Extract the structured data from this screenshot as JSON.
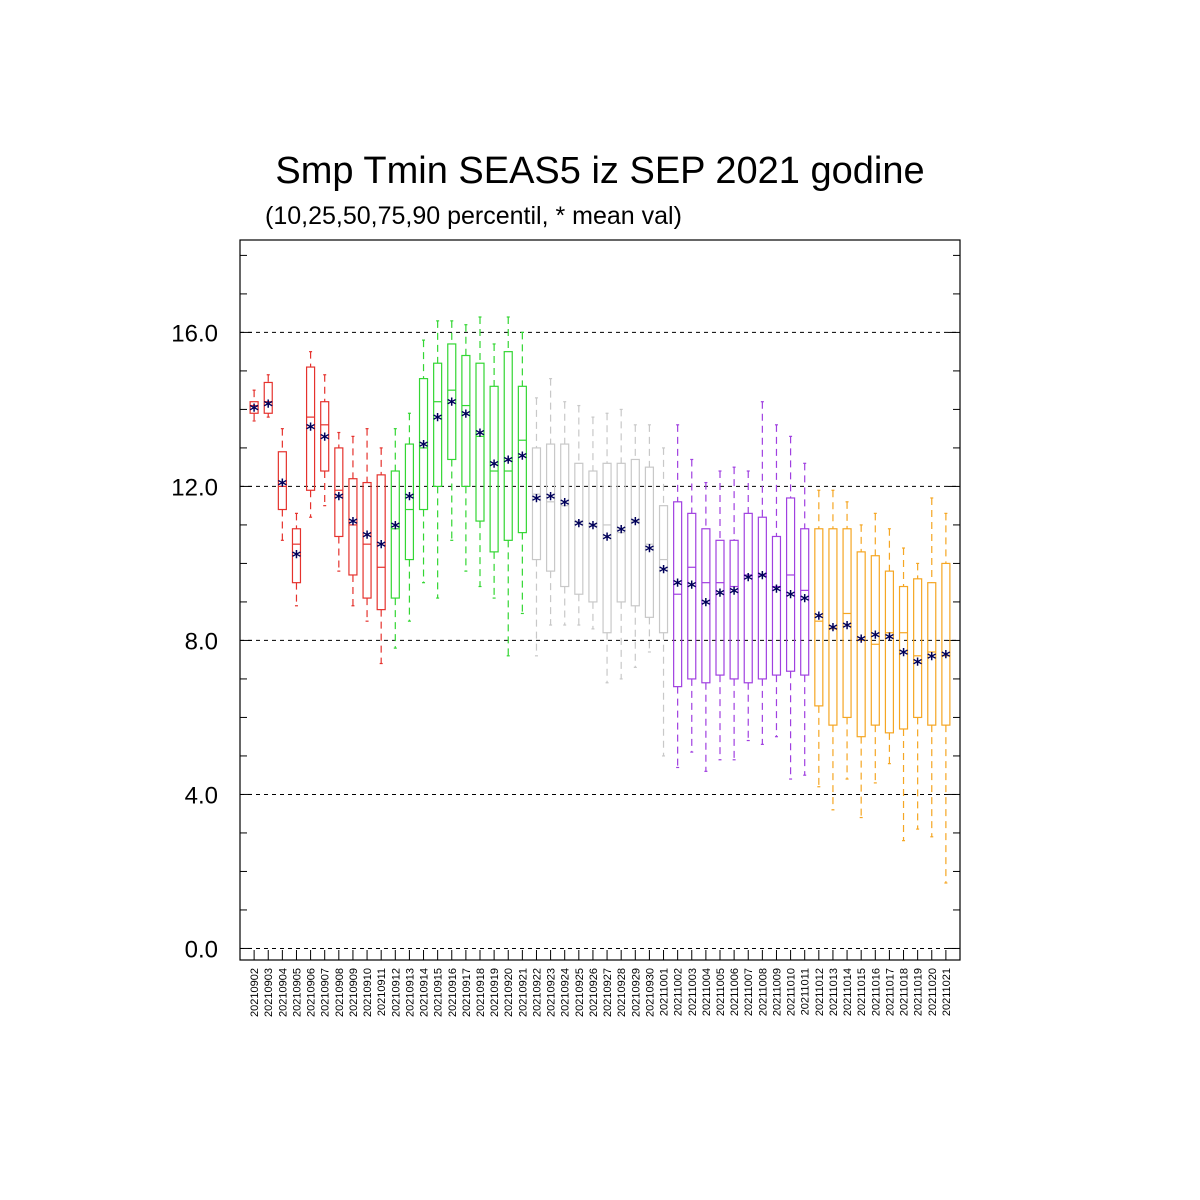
{
  "chart_data": {
    "type": "box",
    "title": "Smp Tmin SEAS5 iz SEP 2021 godine",
    "subtitle": "(10,25,50,75,90 percentil, * mean val)",
    "xlabel": "",
    "ylabel": "",
    "ylim": [
      -0.3,
      18.4
    ],
    "yticks": [
      "0.0",
      "4.0",
      "8.0",
      "12.0",
      "16.0"
    ],
    "ytick_values": [
      0,
      4,
      8,
      12,
      16
    ],
    "grid": "dashed horizontal at major ticks",
    "categories": [
      "20210902",
      "20210903",
      "20210904",
      "20210905",
      "20210906",
      "20210907",
      "20210908",
      "20210909",
      "20210910",
      "20210911",
      "20210912",
      "20210913",
      "20210914",
      "20210915",
      "20210916",
      "20210917",
      "20210918",
      "20210919",
      "20210920",
      "20210921",
      "20210922",
      "20210923",
      "20210924",
      "20210925",
      "20210926",
      "20210927",
      "20210928",
      "20210929",
      "20210930",
      "20211001",
      "20211002",
      "20211003",
      "20211004",
      "20211005",
      "20211006",
      "20211007",
      "20211008",
      "20211009",
      "20211010",
      "20211011",
      "20211012",
      "20211013",
      "20211014",
      "20211015",
      "20211016",
      "20211017",
      "20211018",
      "20211019",
      "20211020",
      "20211021"
    ],
    "colors": [
      "#e5322d",
      "#e5322d",
      "#e5322d",
      "#e5322d",
      "#e5322d",
      "#e5322d",
      "#e5322d",
      "#e5322d",
      "#e5322d",
      "#e5322d",
      "#33d633",
      "#33d633",
      "#33d633",
      "#33d633",
      "#33d633",
      "#33d633",
      "#33d633",
      "#33d633",
      "#33d633",
      "#33d633",
      "#c8c8c8",
      "#c8c8c8",
      "#c8c8c8",
      "#c8c8c8",
      "#c8c8c8",
      "#c8c8c8",
      "#c8c8c8",
      "#c8c8c8",
      "#c8c8c8",
      "#c8c8c8",
      "#a040e0",
      "#a040e0",
      "#a040e0",
      "#a040e0",
      "#a040e0",
      "#a040e0",
      "#a040e0",
      "#a040e0",
      "#a040e0",
      "#a040e0",
      "#f5a623",
      "#f5a623",
      "#f5a623",
      "#f5a623",
      "#f5a623",
      "#f5a623",
      "#f5a623",
      "#f5a623",
      "#f5a623",
      "#f5a623"
    ],
    "mean_color": "#00005a",
    "boxes": [
      {
        "p10": 13.7,
        "p25": 13.9,
        "p50": 14.1,
        "p75": 14.2,
        "p90": 14.5,
        "mean": 14.05
      },
      {
        "p10": 13.8,
        "p25": 13.9,
        "p50": 14.2,
        "p75": 14.7,
        "p90": 14.9,
        "mean": 14.15
      },
      {
        "p10": 10.6,
        "p25": 11.4,
        "p50": 12.0,
        "p75": 12.9,
        "p90": 13.5,
        "mean": 12.1
      },
      {
        "p10": 8.9,
        "p25": 9.5,
        "p50": 10.5,
        "p75": 10.9,
        "p90": 11.3,
        "mean": 10.25
      },
      {
        "p10": 11.2,
        "p25": 11.9,
        "p50": 13.8,
        "p75": 15.1,
        "p90": 15.5,
        "mean": 13.55
      },
      {
        "p10": 11.5,
        "p25": 12.4,
        "p50": 13.6,
        "p75": 14.2,
        "p90": 14.9,
        "mean": 13.3
      },
      {
        "p10": 9.8,
        "p25": 10.7,
        "p50": 11.9,
        "p75": 13.0,
        "p90": 13.4,
        "mean": 11.75
      },
      {
        "p10": 8.9,
        "p25": 9.7,
        "p50": 11.0,
        "p75": 12.2,
        "p90": 13.3,
        "mean": 11.1
      },
      {
        "p10": 8.5,
        "p25": 9.1,
        "p50": 10.5,
        "p75": 12.1,
        "p90": 13.5,
        "mean": 10.75
      },
      {
        "p10": 7.4,
        "p25": 8.8,
        "p50": 9.9,
        "p75": 12.3,
        "p90": 13.0,
        "mean": 10.5
      },
      {
        "p10": 7.8,
        "p25": 9.1,
        "p50": 10.9,
        "p75": 12.4,
        "p90": 13.5,
        "mean": 11.0
      },
      {
        "p10": 8.5,
        "p25": 10.1,
        "p50": 11.4,
        "p75": 13.1,
        "p90": 13.9,
        "mean": 11.75
      },
      {
        "p10": 9.5,
        "p25": 11.4,
        "p50": 13.0,
        "p75": 14.8,
        "p90": 15.8,
        "mean": 13.1
      },
      {
        "p10": 9.1,
        "p25": 12.0,
        "p50": 14.2,
        "p75": 15.2,
        "p90": 16.3,
        "mean": 13.8
      },
      {
        "p10": 10.6,
        "p25": 12.7,
        "p50": 14.5,
        "p75": 15.7,
        "p90": 16.3,
        "mean": 14.2
      },
      {
        "p10": 9.8,
        "p25": 12.0,
        "p50": 14.1,
        "p75": 15.4,
        "p90": 16.2,
        "mean": 13.9
      },
      {
        "p10": 9.4,
        "p25": 11.1,
        "p50": 13.3,
        "p75": 15.2,
        "p90": 16.4,
        "mean": 13.4
      },
      {
        "p10": 9.1,
        "p25": 10.3,
        "p50": 12.4,
        "p75": 14.6,
        "p90": 15.7,
        "mean": 12.6
      },
      {
        "p10": 7.6,
        "p25": 10.6,
        "p50": 12.4,
        "p75": 15.5,
        "p90": 16.4,
        "mean": 12.7
      },
      {
        "p10": 8.7,
        "p25": 10.8,
        "p50": 13.2,
        "p75": 14.6,
        "p90": 16.0,
        "mean": 12.8
      },
      {
        "p10": 7.6,
        "p25": 10.1,
        "p50": 11.8,
        "p75": 13.0,
        "p90": 14.3,
        "mean": 11.7
      },
      {
        "p10": 8.4,
        "p25": 9.8,
        "p50": 11.6,
        "p75": 13.1,
        "p90": 14.8,
        "mean": 11.75
      },
      {
        "p10": 8.4,
        "p25": 9.4,
        "p50": 11.5,
        "p75": 13.1,
        "p90": 14.2,
        "mean": 11.6
      },
      {
        "p10": 8.4,
        "p25": 9.2,
        "p50": 11.1,
        "p75": 12.6,
        "p90": 14.1,
        "mean": 11.05
      },
      {
        "p10": 8.3,
        "p25": 9.0,
        "p50": 11.0,
        "p75": 12.4,
        "p90": 13.8,
        "mean": 11.0
      },
      {
        "p10": 6.9,
        "p25": 8.2,
        "p50": 11.0,
        "p75": 12.6,
        "p90": 13.9,
        "mean": 10.7
      },
      {
        "p10": 7.0,
        "p25": 9.0,
        "p50": 10.8,
        "p75": 12.6,
        "p90": 14.0,
        "mean": 10.9
      },
      {
        "p10": 7.3,
        "p25": 8.9,
        "p50": 11.1,
        "p75": 12.7,
        "p90": 13.6,
        "mean": 11.1
      },
      {
        "p10": 7.7,
        "p25": 8.6,
        "p50": 10.5,
        "p75": 12.5,
        "p90": 13.6,
        "mean": 10.4
      },
      {
        "p10": 5.0,
        "p25": 8.2,
        "p50": 10.1,
        "p75": 11.5,
        "p90": 13.0,
        "mean": 9.85
      },
      {
        "p10": 4.7,
        "p25": 6.8,
        "p50": 9.2,
        "p75": 11.6,
        "p90": 13.6,
        "mean": 9.5
      },
      {
        "p10": 5.1,
        "p25": 7.0,
        "p50": 9.9,
        "p75": 11.3,
        "p90": 12.7,
        "mean": 9.45
      },
      {
        "p10": 4.6,
        "p25": 6.9,
        "p50": 9.5,
        "p75": 10.9,
        "p90": 12.1,
        "mean": 9.0
      },
      {
        "p10": 4.9,
        "p25": 7.1,
        "p50": 9.5,
        "p75": 10.6,
        "p90": 12.4,
        "mean": 9.25
      },
      {
        "p10": 4.9,
        "p25": 7.0,
        "p50": 9.4,
        "p75": 10.6,
        "p90": 12.5,
        "mean": 9.3
      },
      {
        "p10": 5.4,
        "p25": 6.9,
        "p50": 9.7,
        "p75": 11.3,
        "p90": 12.4,
        "mean": 9.65
      },
      {
        "p10": 5.3,
        "p25": 7.0,
        "p50": 9.7,
        "p75": 11.2,
        "p90": 14.2,
        "mean": 9.7
      },
      {
        "p10": 5.5,
        "p25": 7.1,
        "p50": 9.4,
        "p75": 10.7,
        "p90": 13.6,
        "mean": 9.35
      },
      {
        "p10": 4.4,
        "p25": 7.2,
        "p50": 9.7,
        "p75": 11.7,
        "p90": 13.3,
        "mean": 9.2
      },
      {
        "p10": 4.5,
        "p25": 7.1,
        "p50": 9.3,
        "p75": 10.9,
        "p90": 12.6,
        "mean": 9.1
      },
      {
        "p10": 4.2,
        "p25": 6.3,
        "p50": 8.5,
        "p75": 10.9,
        "p90": 11.9,
        "mean": 8.65
      },
      {
        "p10": 3.6,
        "p25": 5.8,
        "p50": 8.3,
        "p75": 10.9,
        "p90": 11.9,
        "mean": 8.35
      },
      {
        "p10": 4.4,
        "p25": 6.0,
        "p50": 8.7,
        "p75": 10.9,
        "p90": 11.6,
        "mean": 8.4
      },
      {
        "p10": 3.4,
        "p25": 5.5,
        "p50": 8.0,
        "p75": 10.3,
        "p90": 11.0,
        "mean": 8.05
      },
      {
        "p10": 4.3,
        "p25": 5.8,
        "p50": 7.9,
        "p75": 10.2,
        "p90": 11.3,
        "mean": 8.15
      },
      {
        "p10": 4.8,
        "p25": 5.6,
        "p50": 8.2,
        "p75": 9.8,
        "p90": 10.9,
        "mean": 8.1
      },
      {
        "p10": 2.8,
        "p25": 5.7,
        "p50": 8.2,
        "p75": 9.4,
        "p90": 10.4,
        "mean": 7.7
      },
      {
        "p10": 3.1,
        "p25": 6.0,
        "p50": 7.6,
        "p75": 9.6,
        "p90": 10.0,
        "mean": 7.45
      },
      {
        "p10": 2.9,
        "p25": 5.8,
        "p50": 7.7,
        "p75": 9.5,
        "p90": 11.7,
        "mean": 7.6
      },
      {
        "p10": 1.7,
        "p25": 5.8,
        "p50": 7.6,
        "p75": 10.0,
        "p90": 11.3,
        "mean": 7.65
      }
    ]
  }
}
